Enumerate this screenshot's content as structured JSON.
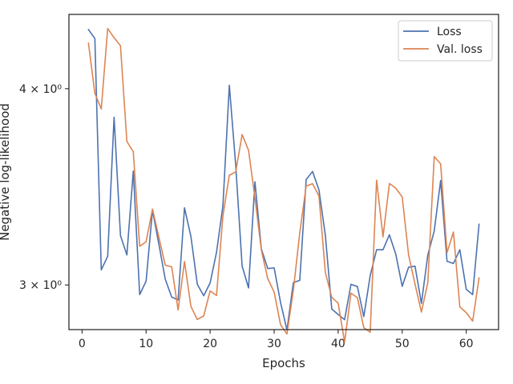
{
  "chart_data": {
    "type": "line",
    "xlabel": "Epochs",
    "ylabel": "Negative log-likelihood",
    "yscale": "log",
    "xlim": [
      -2.05,
      65.05
    ],
    "ylim": [
      2.81,
      4.46
    ],
    "x_ticks": [
      0,
      10,
      20,
      30,
      40,
      50,
      60
    ],
    "x_tick_labels": [
      "0",
      "10",
      "20",
      "30",
      "40",
      "50",
      "60"
    ],
    "y_ticks": [
      3.0,
      4.0
    ],
    "y_tick_labels": [
      "3 × 10⁰",
      "4 × 10⁰"
    ],
    "grid": false,
    "legend_position": "top-right",
    "x": [
      1,
      2,
      3,
      4,
      5,
      6,
      7,
      8,
      9,
      10,
      11,
      12,
      13,
      14,
      15,
      16,
      17,
      18,
      19,
      20,
      21,
      22,
      23,
      24,
      25,
      26,
      27,
      28,
      29,
      30,
      31,
      32,
      33,
      34,
      35,
      36,
      37,
      38,
      39,
      40,
      41,
      42,
      43,
      44,
      45,
      46,
      47,
      48,
      49,
      50,
      51,
      52,
      53,
      54,
      55,
      56,
      57,
      58,
      59,
      60,
      61,
      62
    ],
    "series": [
      {
        "name": "Loss",
        "color": "#4c72b0",
        "values": [
          4.362,
          4.305,
          3.067,
          3.129,
          3.836,
          3.225,
          3.135,
          3.545,
          2.958,
          3.017,
          3.347,
          3.184,
          3.025,
          2.947,
          2.935,
          3.359,
          3.221,
          3.003,
          2.953,
          3.009,
          3.147,
          3.369,
          4.02,
          3.574,
          3.084,
          2.987,
          3.49,
          3.163,
          3.073,
          3.076,
          2.924,
          2.808,
          3.011,
          3.02,
          3.501,
          3.543,
          3.448,
          3.226,
          2.896,
          2.873,
          2.851,
          3.003,
          2.993,
          2.864,
          3.041,
          3.159,
          3.159,
          3.229,
          3.138,
          2.994,
          3.079,
          3.084,
          2.92,
          3.135,
          3.247,
          3.496,
          3.106,
          3.096,
          3.159,
          2.981,
          2.958,
          3.279
        ]
      },
      {
        "name": "Val. loss",
        "color": "#dd8452",
        "values": [
          4.276,
          3.973,
          3.883,
          4.369,
          4.31,
          4.26,
          3.702,
          3.647,
          3.175,
          3.196,
          3.353,
          3.217,
          3.088,
          3.081,
          2.892,
          3.105,
          2.907,
          2.852,
          2.867,
          2.974,
          2.954,
          3.32,
          3.523,
          3.541,
          3.74,
          3.655,
          3.409,
          3.158,
          3.028,
          2.969,
          2.83,
          2.792,
          2.977,
          3.238,
          3.468,
          3.48,
          3.418,
          3.055,
          2.946,
          2.921,
          2.759,
          2.964,
          2.945,
          2.818,
          2.799,
          3.498,
          3.219,
          3.481,
          3.457,
          3.413,
          3.134,
          3.004,
          2.883,
          3.011,
          3.621,
          3.583,
          3.145,
          3.242,
          2.905,
          2.881,
          2.845,
          3.031
        ]
      }
    ]
  }
}
